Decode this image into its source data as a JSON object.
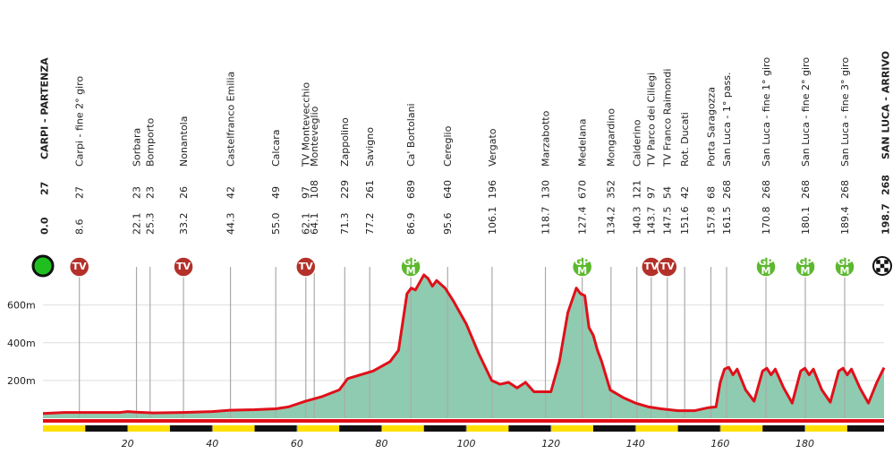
{
  "chart_data": {
    "type": "area",
    "x": [
      0,
      5,
      10,
      18,
      20,
      22,
      26,
      33,
      40,
      44,
      50,
      55,
      58,
      62,
      66,
      70,
      72,
      75,
      78,
      82,
      84,
      86,
      87,
      88,
      89,
      90,
      91,
      92,
      93,
      95,
      97,
      100,
      103,
      106,
      108,
      110,
      112,
      114,
      116,
      118,
      120,
      122,
      124,
      126,
      127,
      128,
      129,
      130,
      131,
      132,
      134,
      137,
      140,
      143,
      146,
      150,
      154,
      157,
      159,
      160,
      161,
      162,
      163,
      164,
      166,
      168,
      170,
      171,
      172,
      173,
      175,
      177,
      179,
      180,
      181,
      182,
      184,
      186,
      188,
      189,
      190,
      191,
      193,
      195,
      197,
      198.7
    ],
    "values": [
      25,
      30,
      30,
      30,
      35,
      32,
      28,
      30,
      35,
      42,
      45,
      50,
      60,
      90,
      115,
      150,
      210,
      230,
      250,
      300,
      360,
      660,
      690,
      680,
      720,
      760,
      740,
      700,
      730,
      690,
      620,
      500,
      340,
      200,
      180,
      190,
      160,
      190,
      140,
      140,
      140,
      300,
      560,
      690,
      660,
      650,
      480,
      440,
      360,
      300,
      150,
      110,
      80,
      60,
      50,
      40,
      40,
      55,
      60,
      190,
      260,
      270,
      230,
      260,
      150,
      90,
      250,
      265,
      230,
      260,
      160,
      80,
      250,
      265,
      230,
      260,
      150,
      85,
      250,
      265,
      230,
      260,
      160,
      80,
      190,
      268
    ],
    "color": "#8fcbb0",
    "line_color": "#e0101a",
    "xlim": [
      0,
      198.7
    ],
    "ylim": [
      0,
      850
    ],
    "xticks": [
      20,
      40,
      60,
      80,
      100,
      120,
      140,
      160,
      180
    ],
    "yticks": [
      {
        "value": 200,
        "label": "200m"
      },
      {
        "value": 400,
        "label": "400m"
      },
      {
        "value": 600,
        "label": "600m"
      }
    ],
    "grid": true,
    "waypoints": [
      {
        "km": 0,
        "km_label": "0.0",
        "alt": 27,
        "name": "CARPI - PARTENZA",
        "main": true
      },
      {
        "km": 8.6,
        "alt": 27,
        "name": "Carpi - fine 2° giro",
        "icon": [
          "TV"
        ]
      },
      {
        "km": 22.1,
        "alt": 23,
        "name": "Sorbara"
      },
      {
        "km": 25.3,
        "alt": 23,
        "name": "Bomporto"
      },
      {
        "km": 33.2,
        "alt": 26,
        "name": "Nonantola",
        "icon": [
          "TV"
        ]
      },
      {
        "km": 44.3,
        "alt": 42,
        "name": "Castelfranco Emilia"
      },
      {
        "km": 55.0,
        "km_label": "55.0",
        "alt": 49,
        "name": "Calcara"
      },
      {
        "km": 62.1,
        "alt": 97,
        "name": "TV Montevecchio",
        "icon": [
          "TV"
        ]
      },
      {
        "km": 64.1,
        "alt": 108,
        "name": "Monteveglio"
      },
      {
        "km": 71.3,
        "alt": 229,
        "name": "Zappolino"
      },
      {
        "km": 77.2,
        "alt": 261,
        "name": "Savigno"
      },
      {
        "km": 86.9,
        "alt": 689,
        "name": "Ca' Bortolani",
        "icon": [
          "GP",
          "M"
        ]
      },
      {
        "km": 95.6,
        "alt": 640,
        "name": "Cereglio"
      },
      {
        "km": 106.1,
        "alt": 196,
        "name": "Vergato"
      },
      {
        "km": 118.7,
        "alt": 130,
        "name": "Marzabotto"
      },
      {
        "km": 127.4,
        "alt": 670,
        "name": "Medelana",
        "icon": [
          "GP",
          "M"
        ]
      },
      {
        "km": 134.2,
        "alt": 352,
        "name": "Mongardino"
      },
      {
        "km": 140.3,
        "alt": 121,
        "name": "Calderino"
      },
      {
        "km": 143.7,
        "alt": 97,
        "name": "TV Parco dei Ciliegi",
        "icon": [
          "TV"
        ]
      },
      {
        "km": 147.5,
        "alt": 54,
        "name": "TV Franco Raimondi",
        "icon": [
          "TV"
        ]
      },
      {
        "km": 151.6,
        "alt": 42,
        "name": "Rot. Ducati"
      },
      {
        "km": 157.8,
        "alt": 68,
        "name": "Porta Saragozza"
      },
      {
        "km": 161.5,
        "alt": 268,
        "name": "San Luca - 1° pass."
      },
      {
        "km": 170.8,
        "alt": 268,
        "name": "San Luca - fine 1° giro",
        "icon": [
          "GP",
          "M"
        ]
      },
      {
        "km": 180.1,
        "alt": 268,
        "name": "San Luca - fine 2° giro",
        "icon": [
          "GP",
          "M"
        ]
      },
      {
        "km": 189.4,
        "alt": 268,
        "name": "San Luca - fine 3° giro",
        "icon": [
          "GP",
          "M"
        ]
      },
      {
        "km": 198.7,
        "alt": 268,
        "name": "SAN LUCA - ARRIVO",
        "main": true
      }
    ]
  }
}
